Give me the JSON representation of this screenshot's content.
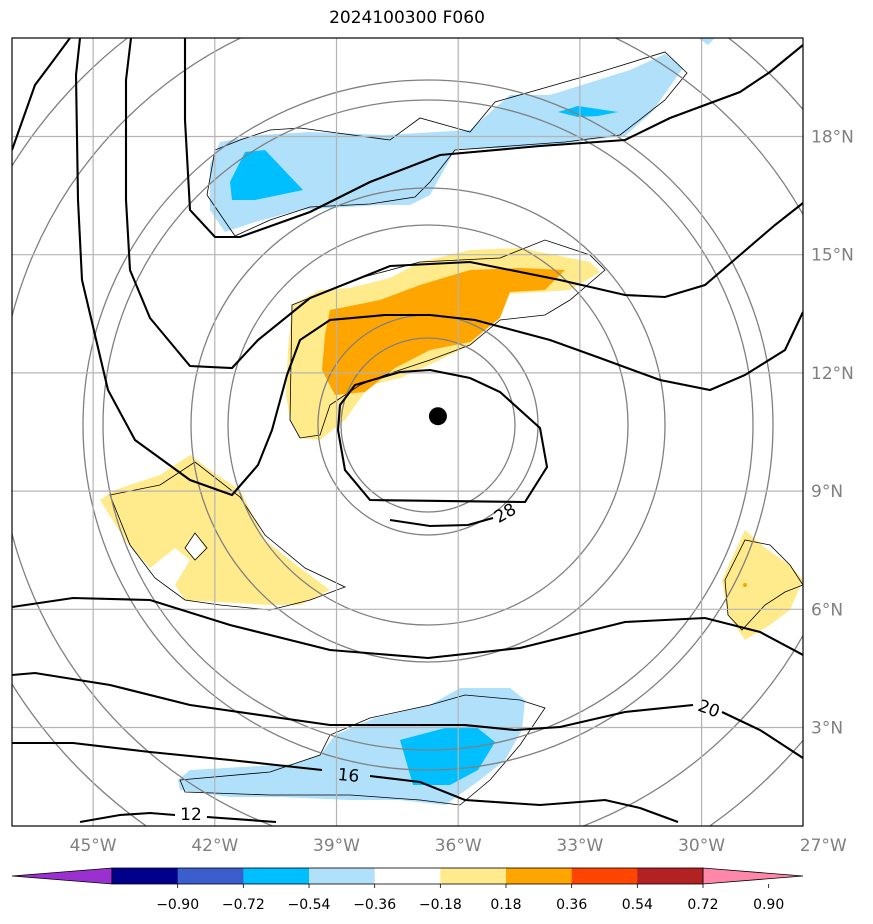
{
  "title": "2024100300 F060",
  "map": {
    "lon_range": [
      -47,
      -27.5
    ],
    "lat_range": [
      0.5,
      20.5
    ],
    "lon_ticks": [
      "45°W",
      "42°W",
      "39°W",
      "36°W",
      "33°W",
      "30°W",
      "27°W"
    ],
    "lat_ticks": [
      "3°N",
      "6°N",
      "9°N",
      "12°N",
      "15°N",
      "18°N"
    ],
    "gridlines": true,
    "storm_center": {
      "lon": -36.5,
      "lat": 10.9,
      "marker": "filled-circle",
      "color": "#000000"
    },
    "contour_labels": [
      "28",
      "20",
      "16",
      "12"
    ]
  },
  "colorbar": {
    "tick_labels": [
      "−0.90",
      "−0.72",
      "−0.54",
      "−0.36",
      "−0.18",
      "0.18",
      "0.36",
      "0.54",
      "0.72",
      "0.90"
    ],
    "colors": [
      "#9b30d0",
      "#00008b",
      "#3a5fcd",
      "#00bfff",
      "#b0e0fa",
      "#ffffff",
      "#ffea8c",
      "#ffa500",
      "#ff4500",
      "#b22222",
      "#ff88aa"
    ],
    "extend": "both"
  }
}
